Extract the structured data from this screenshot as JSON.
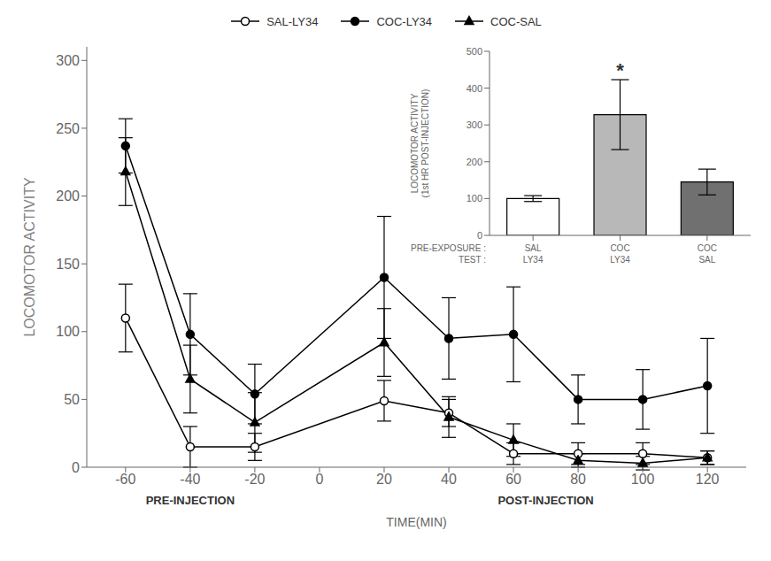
{
  "chart_data": [
    {
      "type": "line",
      "x": [
        -60,
        -40,
        -20,
        20,
        40,
        60,
        80,
        100,
        120
      ],
      "xlim": [
        -72,
        132
      ],
      "xticks": [
        -60,
        -40,
        -20,
        0,
        20,
        40,
        60,
        80,
        100,
        120
      ],
      "ylim": [
        0,
        310
      ],
      "yticks": [
        0,
        50,
        100,
        150,
        200,
        250,
        300
      ],
      "xlabel": "TIME(MIN)",
      "ylabel": "LOCOMOTOR ACTIVITY",
      "legend": "top",
      "grid": false,
      "series": [
        {
          "name": "SAL-LY34",
          "color": "#000000",
          "marker": "open_circle",
          "line_style": "solid",
          "values": [
            110,
            15,
            15,
            49,
            40,
            10,
            10,
            10,
            7
          ],
          "errors": [
            25,
            15,
            10,
            15,
            10,
            8,
            8,
            8,
            5
          ]
        },
        {
          "name": "COC-LY34",
          "color": "#000000",
          "marker": "circle",
          "line_style": "solid",
          "values": [
            237,
            98,
            54,
            140,
            95,
            98,
            50,
            50,
            60
          ],
          "errors": [
            20,
            30,
            22,
            45,
            30,
            35,
            18,
            22,
            35
          ]
        },
        {
          "name": "COC-SAL",
          "color": "#000000",
          "marker": "triangle",
          "line_style": "solid",
          "values": [
            218,
            65,
            33,
            92,
            37,
            20,
            5,
            3,
            7
          ],
          "errors": [
            25,
            25,
            22,
            25,
            15,
            12,
            5,
            5,
            5
          ]
        }
      ],
      "annotations": [
        {
          "text": "PRE-INJECTION",
          "x_range": [
            -60,
            -20
          ]
        },
        {
          "text": "POST-INJECTION",
          "x_range": [
            20,
            120
          ]
        }
      ]
    },
    {
      "type": "bar",
      "categories": [
        "SAL\nLY34",
        "COC\nLY34",
        "COC\nSAL"
      ],
      "values": [
        100,
        328,
        145
      ],
      "errors": [
        8,
        95,
        35
      ],
      "colors": [
        "#ffffff",
        "#b8b8b8",
        "#707070"
      ],
      "ylim": [
        0,
        500
      ],
      "yticks": [
        0,
        100,
        200,
        300,
        400,
        500
      ],
      "ylabel": "LOCOMOTOR ACTIVITY\n(1st HR POST-INJECTION)",
      "grid": false,
      "annotations": [
        {
          "text": "*",
          "category": "COC\nLY34"
        },
        {
          "text": "PRE-EXPOSURE :",
          "row": 0
        },
        {
          "text": "TEST :",
          "row": 1
        }
      ]
    }
  ]
}
